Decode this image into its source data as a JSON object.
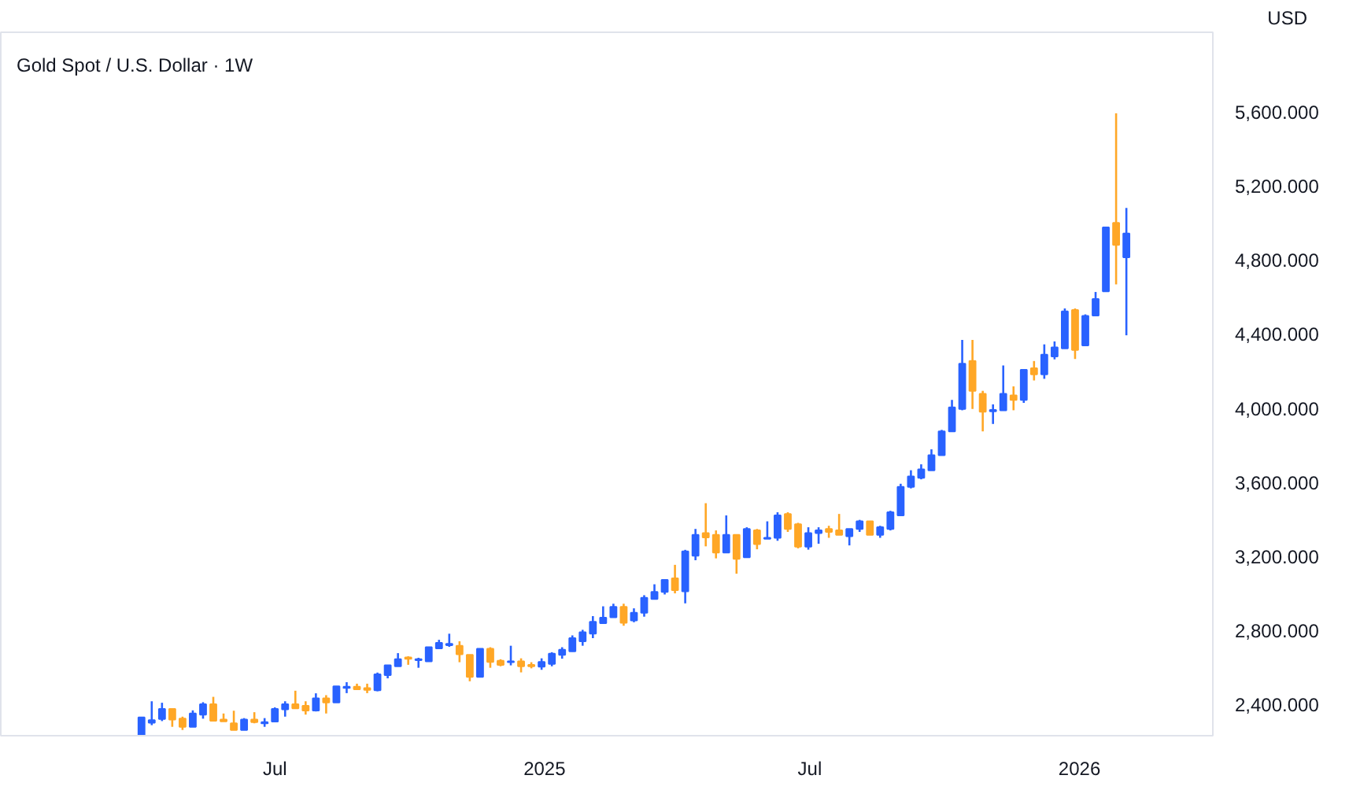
{
  "chart_data": {
    "type": "candlestick",
    "title": "Gold Spot / U.S. Dollar · 1W",
    "ylabel": "USD",
    "x": [
      "2024-04-01",
      "2024-04-08",
      "2024-04-15",
      "2024-04-22",
      "2024-04-29",
      "2024-05-06",
      "2024-05-13",
      "2024-05-20",
      "2024-05-27",
      "2024-06-03",
      "2024-06-10",
      "2024-06-17",
      "2024-06-24",
      "2024-07-01",
      "2024-07-08",
      "2024-07-15",
      "2024-07-22",
      "2024-07-29",
      "2024-08-05",
      "2024-08-12",
      "2024-08-19",
      "2024-08-26",
      "2024-09-02",
      "2024-09-09",
      "2024-09-16",
      "2024-09-23",
      "2024-09-30",
      "2024-10-07",
      "2024-10-14",
      "2024-10-21",
      "2024-10-28",
      "2024-11-04",
      "2024-11-11",
      "2024-11-18",
      "2024-11-25",
      "2024-12-02",
      "2024-12-09",
      "2024-12-16",
      "2024-12-23",
      "2024-12-30",
      "2025-01-06",
      "2025-01-13",
      "2025-01-20",
      "2025-01-27",
      "2025-02-03",
      "2025-02-10",
      "2025-02-17",
      "2025-02-24",
      "2025-03-03",
      "2025-03-10",
      "2025-03-17",
      "2025-03-24",
      "2025-03-31",
      "2025-04-07",
      "2025-04-14",
      "2025-04-21",
      "2025-04-28",
      "2025-05-05",
      "2025-05-12",
      "2025-05-19",
      "2025-05-26",
      "2025-06-02",
      "2025-06-09",
      "2025-06-16",
      "2025-06-23",
      "2025-06-30",
      "2025-07-07",
      "2025-07-14",
      "2025-07-21",
      "2025-07-28",
      "2025-08-04",
      "2025-08-11",
      "2025-08-18",
      "2025-08-25",
      "2025-09-01",
      "2025-09-08",
      "2025-09-15",
      "2025-09-22",
      "2025-09-29",
      "2025-10-06",
      "2025-10-13",
      "2025-10-20",
      "2025-10-27",
      "2025-11-03",
      "2025-11-10",
      "2025-11-17",
      "2025-11-24",
      "2025-12-01",
      "2025-12-08",
      "2025-12-15",
      "2025-12-22",
      "2025-12-29",
      "2026-01-05",
      "2026-01-12",
      "2026-01-19",
      "2026-01-26",
      "2026-02-02"
    ],
    "ohlc": [
      [
        2233,
        2331,
        2228,
        2329
      ],
      [
        2300,
        2416,
        2287,
        2314
      ],
      [
        2320,
        2408,
        2309,
        2375
      ],
      [
        2375,
        2375,
        2278,
        2317
      ],
      [
        2322,
        2333,
        2261,
        2278
      ],
      [
        2278,
        2367,
        2278,
        2350
      ],
      [
        2344,
        2411,
        2322,
        2400
      ],
      [
        2400,
        2440,
        2311,
        2311
      ],
      [
        2317,
        2350,
        2308,
        2308
      ],
      [
        2297,
        2365,
        2261,
        2261
      ],
      [
        2261,
        2325,
        2261,
        2317
      ],
      [
        2317,
        2357,
        2297,
        2303
      ],
      [
        2297,
        2325,
        2278,
        2303
      ],
      [
        2306,
        2383,
        2303,
        2375
      ],
      [
        2372,
        2416,
        2333,
        2400
      ],
      [
        2400,
        2473,
        2378,
        2378
      ],
      [
        2391,
        2416,
        2344,
        2366
      ],
      [
        2366,
        2459,
        2361,
        2432
      ],
      [
        2432,
        2449,
        2350,
        2410
      ],
      [
        2410,
        2497,
        2410,
        2497
      ],
      [
        2488,
        2519,
        2460,
        2495
      ],
      [
        2495,
        2511,
        2481,
        2481
      ],
      [
        2487,
        2511,
        2460,
        2478
      ],
      [
        2476,
        2571,
        2470,
        2562
      ],
      [
        2557,
        2610,
        2540,
        2610
      ],
      [
        2605,
        2676,
        2605,
        2643
      ],
      [
        2653,
        2659,
        2613,
        2646
      ],
      [
        2638,
        2651,
        2597,
        2643
      ],
      [
        2632,
        2708,
        2632,
        2708
      ],
      [
        2702,
        2748,
        2702,
        2732
      ],
      [
        2719,
        2781,
        2710,
        2726
      ],
      [
        2716,
        2740,
        2627,
        2670
      ],
      [
        2667,
        2667,
        2524,
        2548
      ],
      [
        2548,
        2700,
        2548,
        2700
      ],
      [
        2700,
        2708,
        2597,
        2629
      ],
      [
        2635,
        2643,
        2605,
        2613
      ],
      [
        2627,
        2716,
        2610,
        2632
      ],
      [
        2632,
        2648,
        2572,
        2605
      ],
      [
        2613,
        2627,
        2594,
        2605
      ],
      [
        2603,
        2648,
        2586,
        2629
      ],
      [
        2618,
        2681,
        2605,
        2673
      ],
      [
        2667,
        2708,
        2646,
        2694
      ],
      [
        2686,
        2772,
        2684,
        2757
      ],
      [
        2740,
        2802,
        2716,
        2789
      ],
      [
        2781,
        2876,
        2757,
        2845
      ],
      [
        2838,
        2929,
        2838,
        2868
      ],
      [
        2870,
        2943,
        2870,
        2926
      ],
      [
        2926,
        2943,
        2824,
        2840
      ],
      [
        2853,
        2918,
        2843,
        2894
      ],
      [
        2894,
        2989,
        2873,
        2975
      ],
      [
        2969,
        3048,
        2969,
        3007
      ],
      [
        3007,
        3072,
        2993,
        3072
      ],
      [
        3080,
        3153,
        2999,
        3016
      ],
      [
        3010,
        3234,
        2945,
        3226
      ],
      [
        3202,
        3347,
        3178,
        3315
      ],
      [
        3324,
        3486,
        3253,
        3301
      ],
      [
        3315,
        3339,
        3188,
        3219
      ],
      [
        3219,
        3420,
        3219,
        3315
      ],
      [
        3315,
        3315,
        3105,
        3185
      ],
      [
        3194,
        3356,
        3194,
        3347
      ],
      [
        3339,
        3347,
        3237,
        3265
      ],
      [
        3294,
        3388,
        3294,
        3299
      ],
      [
        3299,
        3437,
        3283,
        3420
      ],
      [
        3428,
        3437,
        3331,
        3347
      ],
      [
        3372,
        3380,
        3242,
        3251
      ],
      [
        3251,
        3356,
        3235,
        3324
      ],
      [
        3324,
        3356,
        3267,
        3339
      ],
      [
        3347,
        3364,
        3299,
        3331
      ],
      [
        3339,
        3428,
        3315,
        3315
      ],
      [
        3307,
        3347,
        3258,
        3347
      ],
      [
        3347,
        3396,
        3331,
        3388
      ],
      [
        3388,
        3388,
        3315,
        3315
      ],
      [
        3315,
        3364,
        3299,
        3356
      ],
      [
        3347,
        3445,
        3339,
        3437
      ],
      [
        3420,
        3591,
        3420,
        3574
      ],
      [
        3574,
        3664,
        3566,
        3631
      ],
      [
        3623,
        3696,
        3615,
        3669
      ],
      [
        3664,
        3777,
        3664,
        3745
      ],
      [
        3745,
        3882,
        3745,
        3874
      ],
      [
        3874,
        4044,
        3874,
        4004
      ],
      [
        3995,
        4368,
        3988,
        4239
      ],
      [
        4254,
        4368,
        3995,
        4093
      ],
      [
        4077,
        4093,
        3874,
        3980
      ],
      [
        3982,
        4020,
        3914,
        3990
      ],
      [
        3988,
        4230,
        3988,
        4077
      ],
      [
        4068,
        4117,
        3988,
        4044
      ],
      [
        4044,
        4207,
        4028,
        4207
      ],
      [
        4215,
        4254,
        4149,
        4182
      ],
      [
        4182,
        4344,
        4158,
        4288
      ],
      [
        4279,
        4360,
        4263,
        4328
      ],
      [
        4322,
        4538,
        4322,
        4522
      ],
      [
        4530,
        4538,
        4265,
        4314
      ],
      [
        4338,
        4506,
        4338,
        4498
      ],
      [
        4500,
        4627,
        4500,
        4589
      ],
      [
        4630,
        4976,
        4630,
        4976
      ],
      [
        5000,
        5592,
        4668,
        4881
      ],
      [
        4814,
        5081,
        4393,
        4943
      ]
    ],
    "colors": [
      "#2962ff",
      "#2962ff",
      "#2962ff",
      "#ffa726",
      "#ffa726",
      "#2962ff",
      "#2962ff",
      "#ffa726",
      "#ffa726",
      "#ffa726",
      "#2962ff",
      "#ffa726",
      "#2962ff",
      "#2962ff",
      "#2962ff",
      "#ffa726",
      "#ffa726",
      "#2962ff",
      "#ffa726",
      "#2962ff",
      "#2962ff",
      "#ffa726",
      "#ffa726",
      "#2962ff",
      "#2962ff",
      "#2962ff",
      "#ffa726",
      "#2962ff",
      "#2962ff",
      "#2962ff",
      "#2962ff",
      "#ffa726",
      "#ffa726",
      "#2962ff",
      "#ffa726",
      "#ffa726",
      "#2962ff",
      "#ffa726",
      "#ffa726",
      "#2962ff",
      "#2962ff",
      "#2962ff",
      "#2962ff",
      "#2962ff",
      "#2962ff",
      "#2962ff",
      "#2962ff",
      "#ffa726",
      "#2962ff",
      "#2962ff",
      "#2962ff",
      "#2962ff",
      "#ffa726",
      "#2962ff",
      "#2962ff",
      "#ffa726",
      "#ffa726",
      "#2962ff",
      "#ffa726",
      "#2962ff",
      "#ffa726",
      "#2962ff",
      "#2962ff",
      "#ffa726",
      "#ffa726",
      "#2962ff",
      "#2962ff",
      "#ffa726",
      "#ffa726",
      "#2962ff",
      "#2962ff",
      "#ffa726",
      "#2962ff",
      "#2962ff",
      "#2962ff",
      "#2962ff",
      "#2962ff",
      "#2962ff",
      "#2962ff",
      "#2962ff",
      "#2962ff",
      "#ffa726",
      "#ffa726",
      "#2962ff",
      "#2962ff",
      "#ffa726",
      "#2962ff",
      "#ffa726",
      "#2962ff",
      "#2962ff",
      "#2962ff",
      "#ffa726",
      "#2962ff",
      "#2962ff",
      "#2962ff",
      "#ffa726",
      "#2962ff"
    ],
    "xlim": [
      "2023-12-27",
      "2026-04-02"
    ],
    "xticks": [
      {
        "value": "2024-07-01",
        "label": "Jul"
      },
      {
        "value": "2025-01-01",
        "label": "2025"
      },
      {
        "value": "2025-07-01",
        "label": "Jul"
      },
      {
        "value": "2026-01-01",
        "label": "2026"
      }
    ],
    "ylim": [
      2230,
      6030
    ],
    "yticks": [
      {
        "value": 2400,
        "label": "2,400.000"
      },
      {
        "value": 2800,
        "label": "2,800.000"
      },
      {
        "value": 3200,
        "label": "3,200.000"
      },
      {
        "value": 3600,
        "label": "3,600.000"
      },
      {
        "value": 4000,
        "label": "4,000.000"
      },
      {
        "value": 4400,
        "label": "4,400.000"
      },
      {
        "value": 4800,
        "label": "4,800.000"
      },
      {
        "value": 5200,
        "label": "5,200.000"
      },
      {
        "value": 5600,
        "label": "5,600.000"
      }
    ],
    "grid": false
  }
}
